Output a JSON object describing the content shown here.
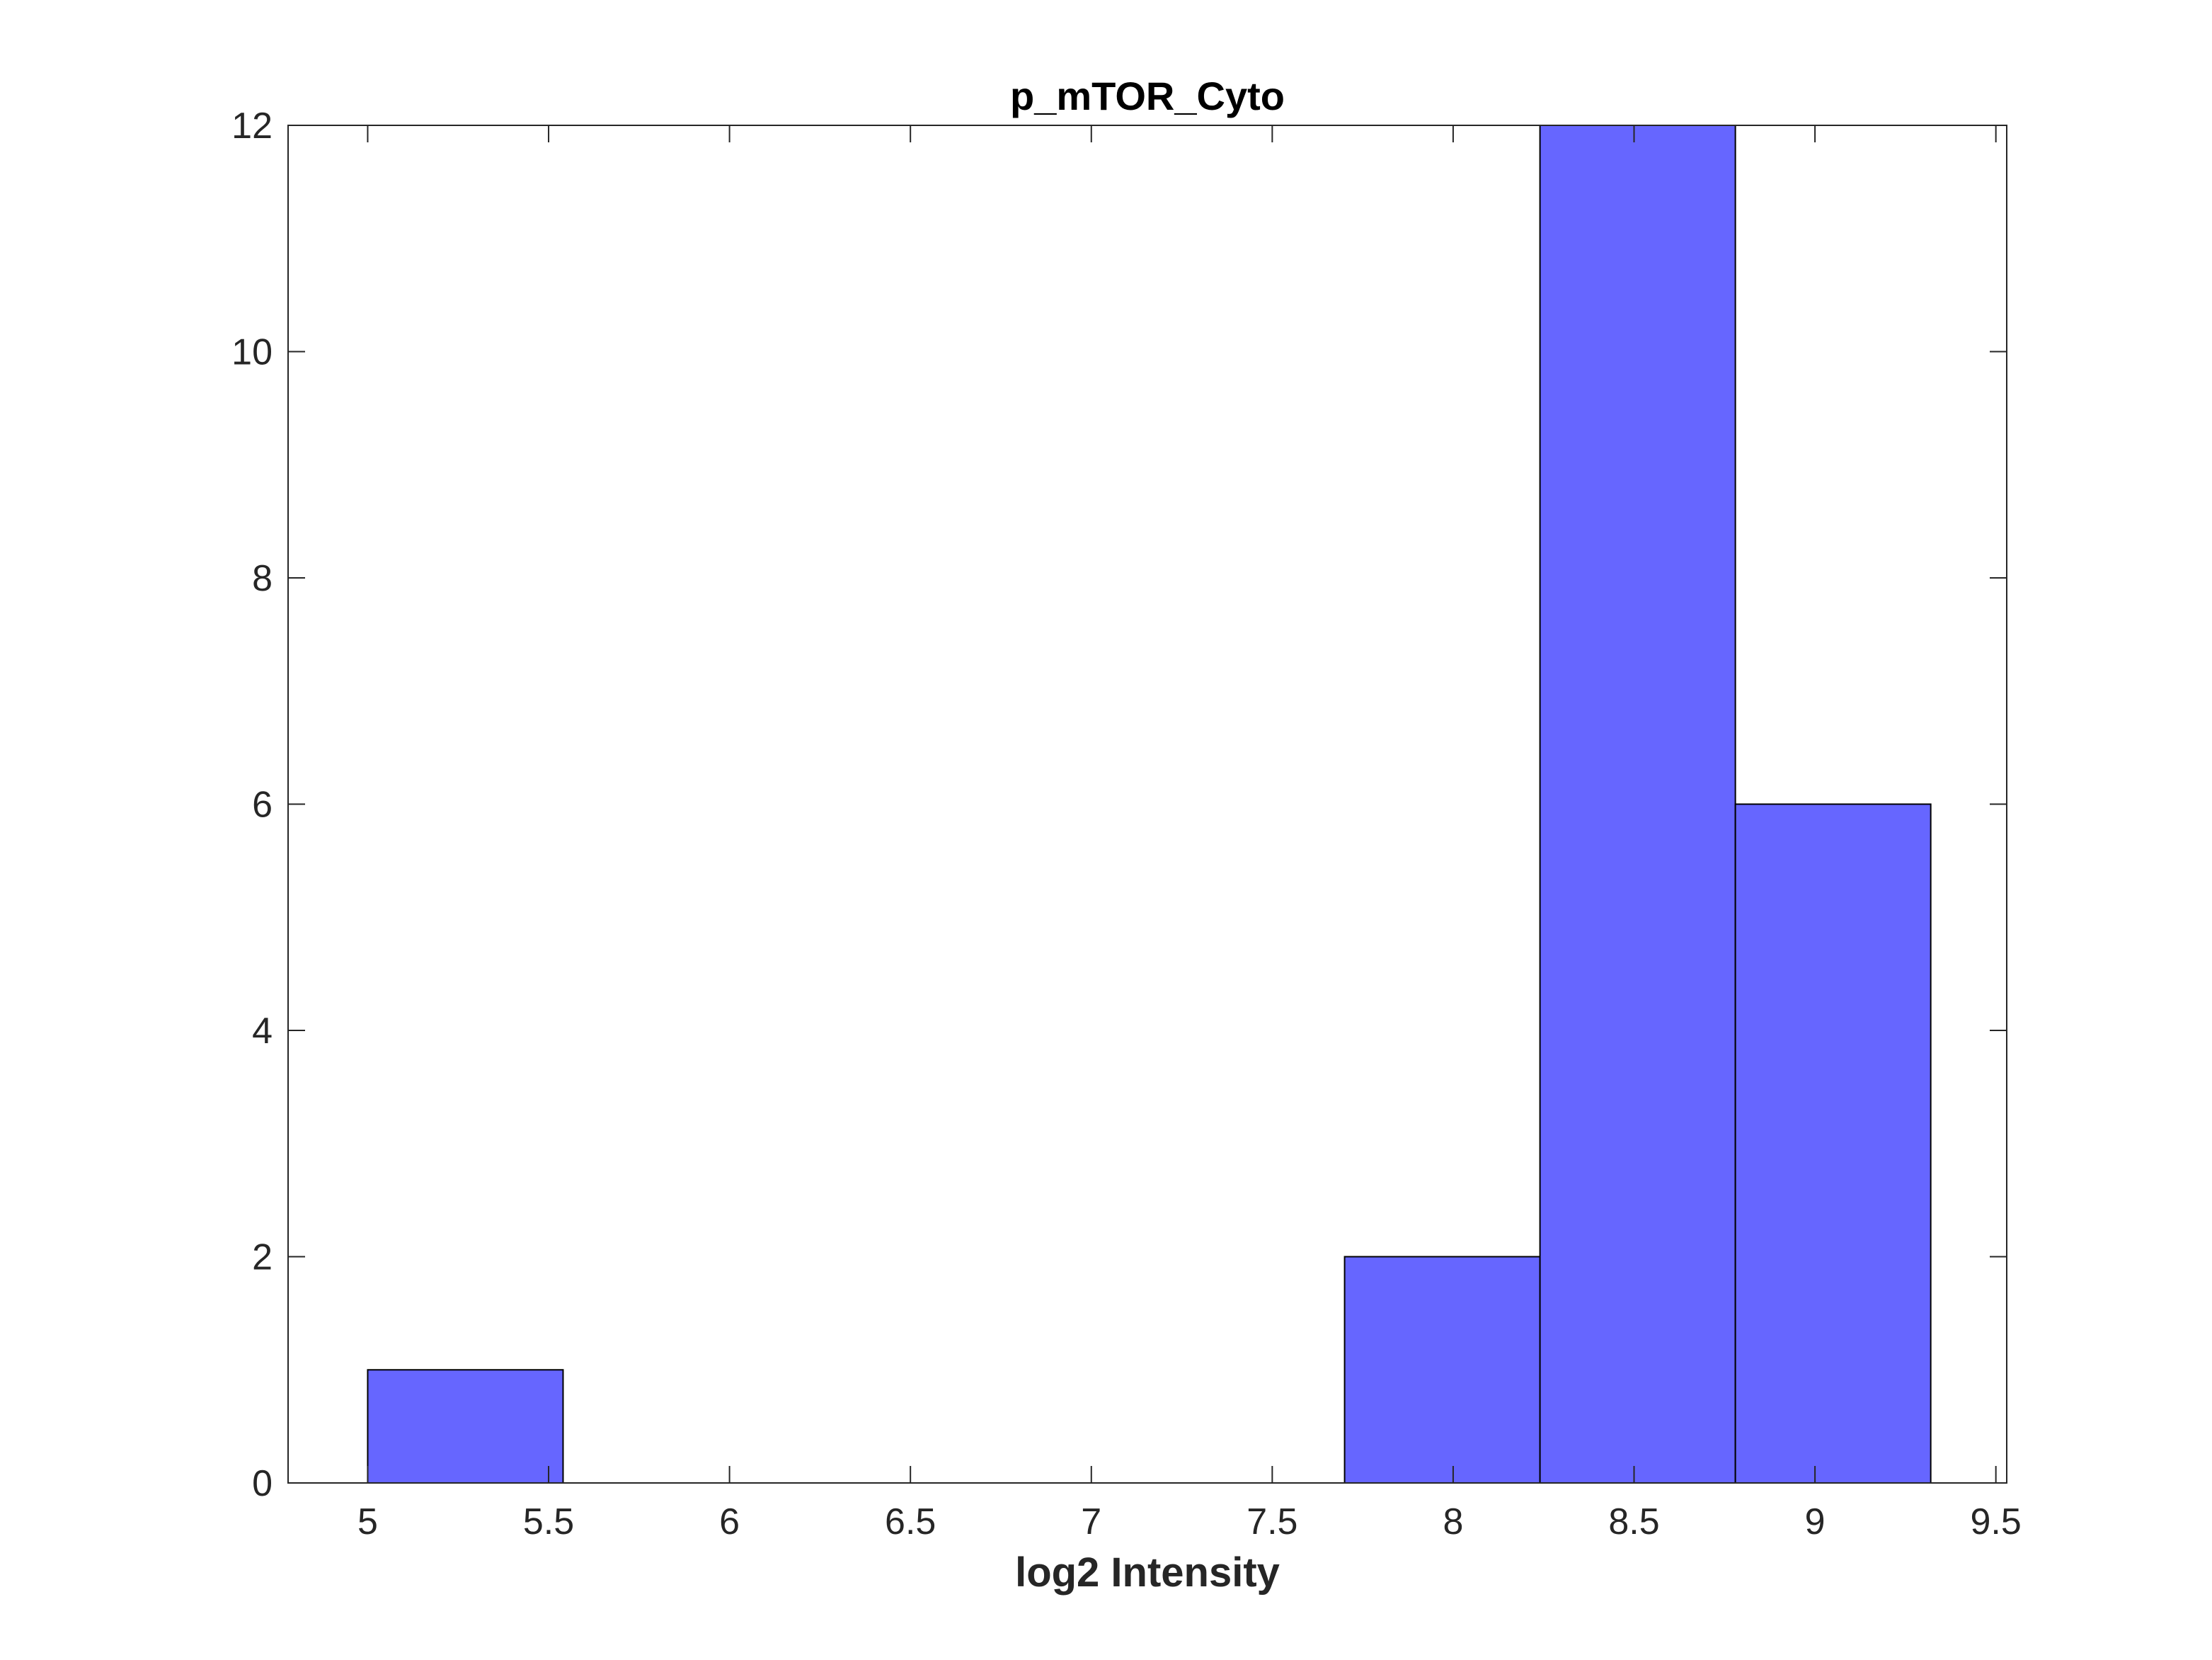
{
  "chart_data": {
    "type": "bar",
    "title": "p_mTOR_Cyto",
    "xlabel": "log2 Intensity",
    "ylabel": "",
    "xlim": [
      4.78,
      9.53
    ],
    "ylim": [
      0,
      12
    ],
    "xticks": [
      "5",
      "5.5",
      "6",
      "6.5",
      "7",
      "7.5",
      "8",
      "8.5",
      "9",
      "9.5"
    ],
    "yticks": [
      "0",
      "2",
      "4",
      "6",
      "8",
      "10",
      "12"
    ],
    "bins": [
      {
        "x0": 5.0,
        "x1": 5.54,
        "count": 1
      },
      {
        "x0": 5.54,
        "x1": 6.08,
        "count": 0
      },
      {
        "x0": 6.08,
        "x1": 6.62,
        "count": 0
      },
      {
        "x0": 6.62,
        "x1": 7.16,
        "count": 0
      },
      {
        "x0": 7.16,
        "x1": 7.7,
        "count": 0
      },
      {
        "x0": 7.7,
        "x1": 8.24,
        "count": 2
      },
      {
        "x0": 8.24,
        "x1": 8.78,
        "count": 12
      },
      {
        "x0": 8.78,
        "x1": 9.32,
        "count": 6
      }
    ],
    "bar_color": "#6666ff",
    "edge_color": "#000000",
    "grid": false,
    "legend": "none"
  }
}
